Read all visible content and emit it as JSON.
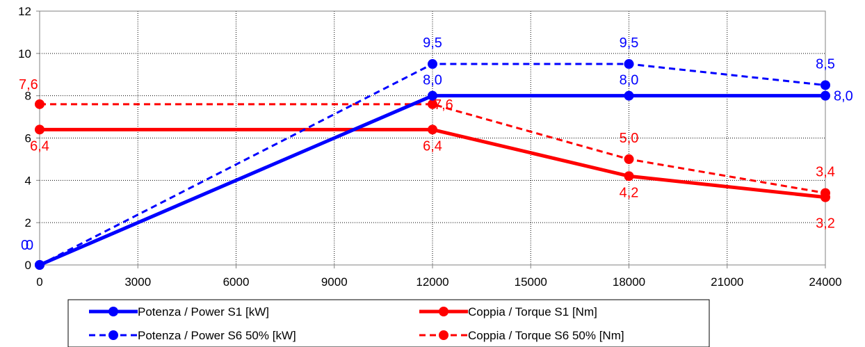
{
  "chart_data": {
    "type": "line",
    "title": "",
    "xlabel": "",
    "ylabel": "",
    "x": [
      0,
      12000,
      18000,
      24000
    ],
    "xlim": [
      0,
      24000
    ],
    "ylim": [
      0,
      12
    ],
    "x_ticks": [
      "0",
      "3000",
      "6000",
      "9000",
      "12000",
      "15000",
      "18000",
      "21000",
      "24000"
    ],
    "y_ticks": [
      "0",
      "2",
      "4",
      "6",
      "8",
      "10",
      "12"
    ],
    "grid": true,
    "legend_position": "bottom",
    "series": [
      {
        "name": "Potenza / Power S1 [kW]",
        "values": [
          0,
          8.0,
          8.0,
          8.0
        ],
        "labels": [
          "0",
          "8,0",
          "8,0",
          "8,0"
        ],
        "color": "#0000ff",
        "style": "solid"
      },
      {
        "name": "Coppia / Torque S1 [Nm]",
        "values": [
          6.4,
          6.4,
          4.2,
          3.2
        ],
        "labels": [
          "6,4",
          "6,4",
          "4,2",
          "3,2"
        ],
        "color": "#ff0000",
        "style": "solid"
      },
      {
        "name": "Potenza / Power S6 50% [kW]",
        "values": [
          0,
          9.5,
          9.5,
          8.5
        ],
        "labels": [
          "0",
          "9,5",
          "9,5",
          "8,5"
        ],
        "color": "#0000ff",
        "style": "dashed"
      },
      {
        "name": "Coppia / Torque S6 50% [Nm]",
        "values": [
          7.6,
          7.6,
          5.0,
          3.4
        ],
        "labels": [
          "7,6",
          "7,6",
          "5,0",
          "3,4"
        ],
        "color": "#ff0000",
        "style": "dashed"
      }
    ]
  }
}
